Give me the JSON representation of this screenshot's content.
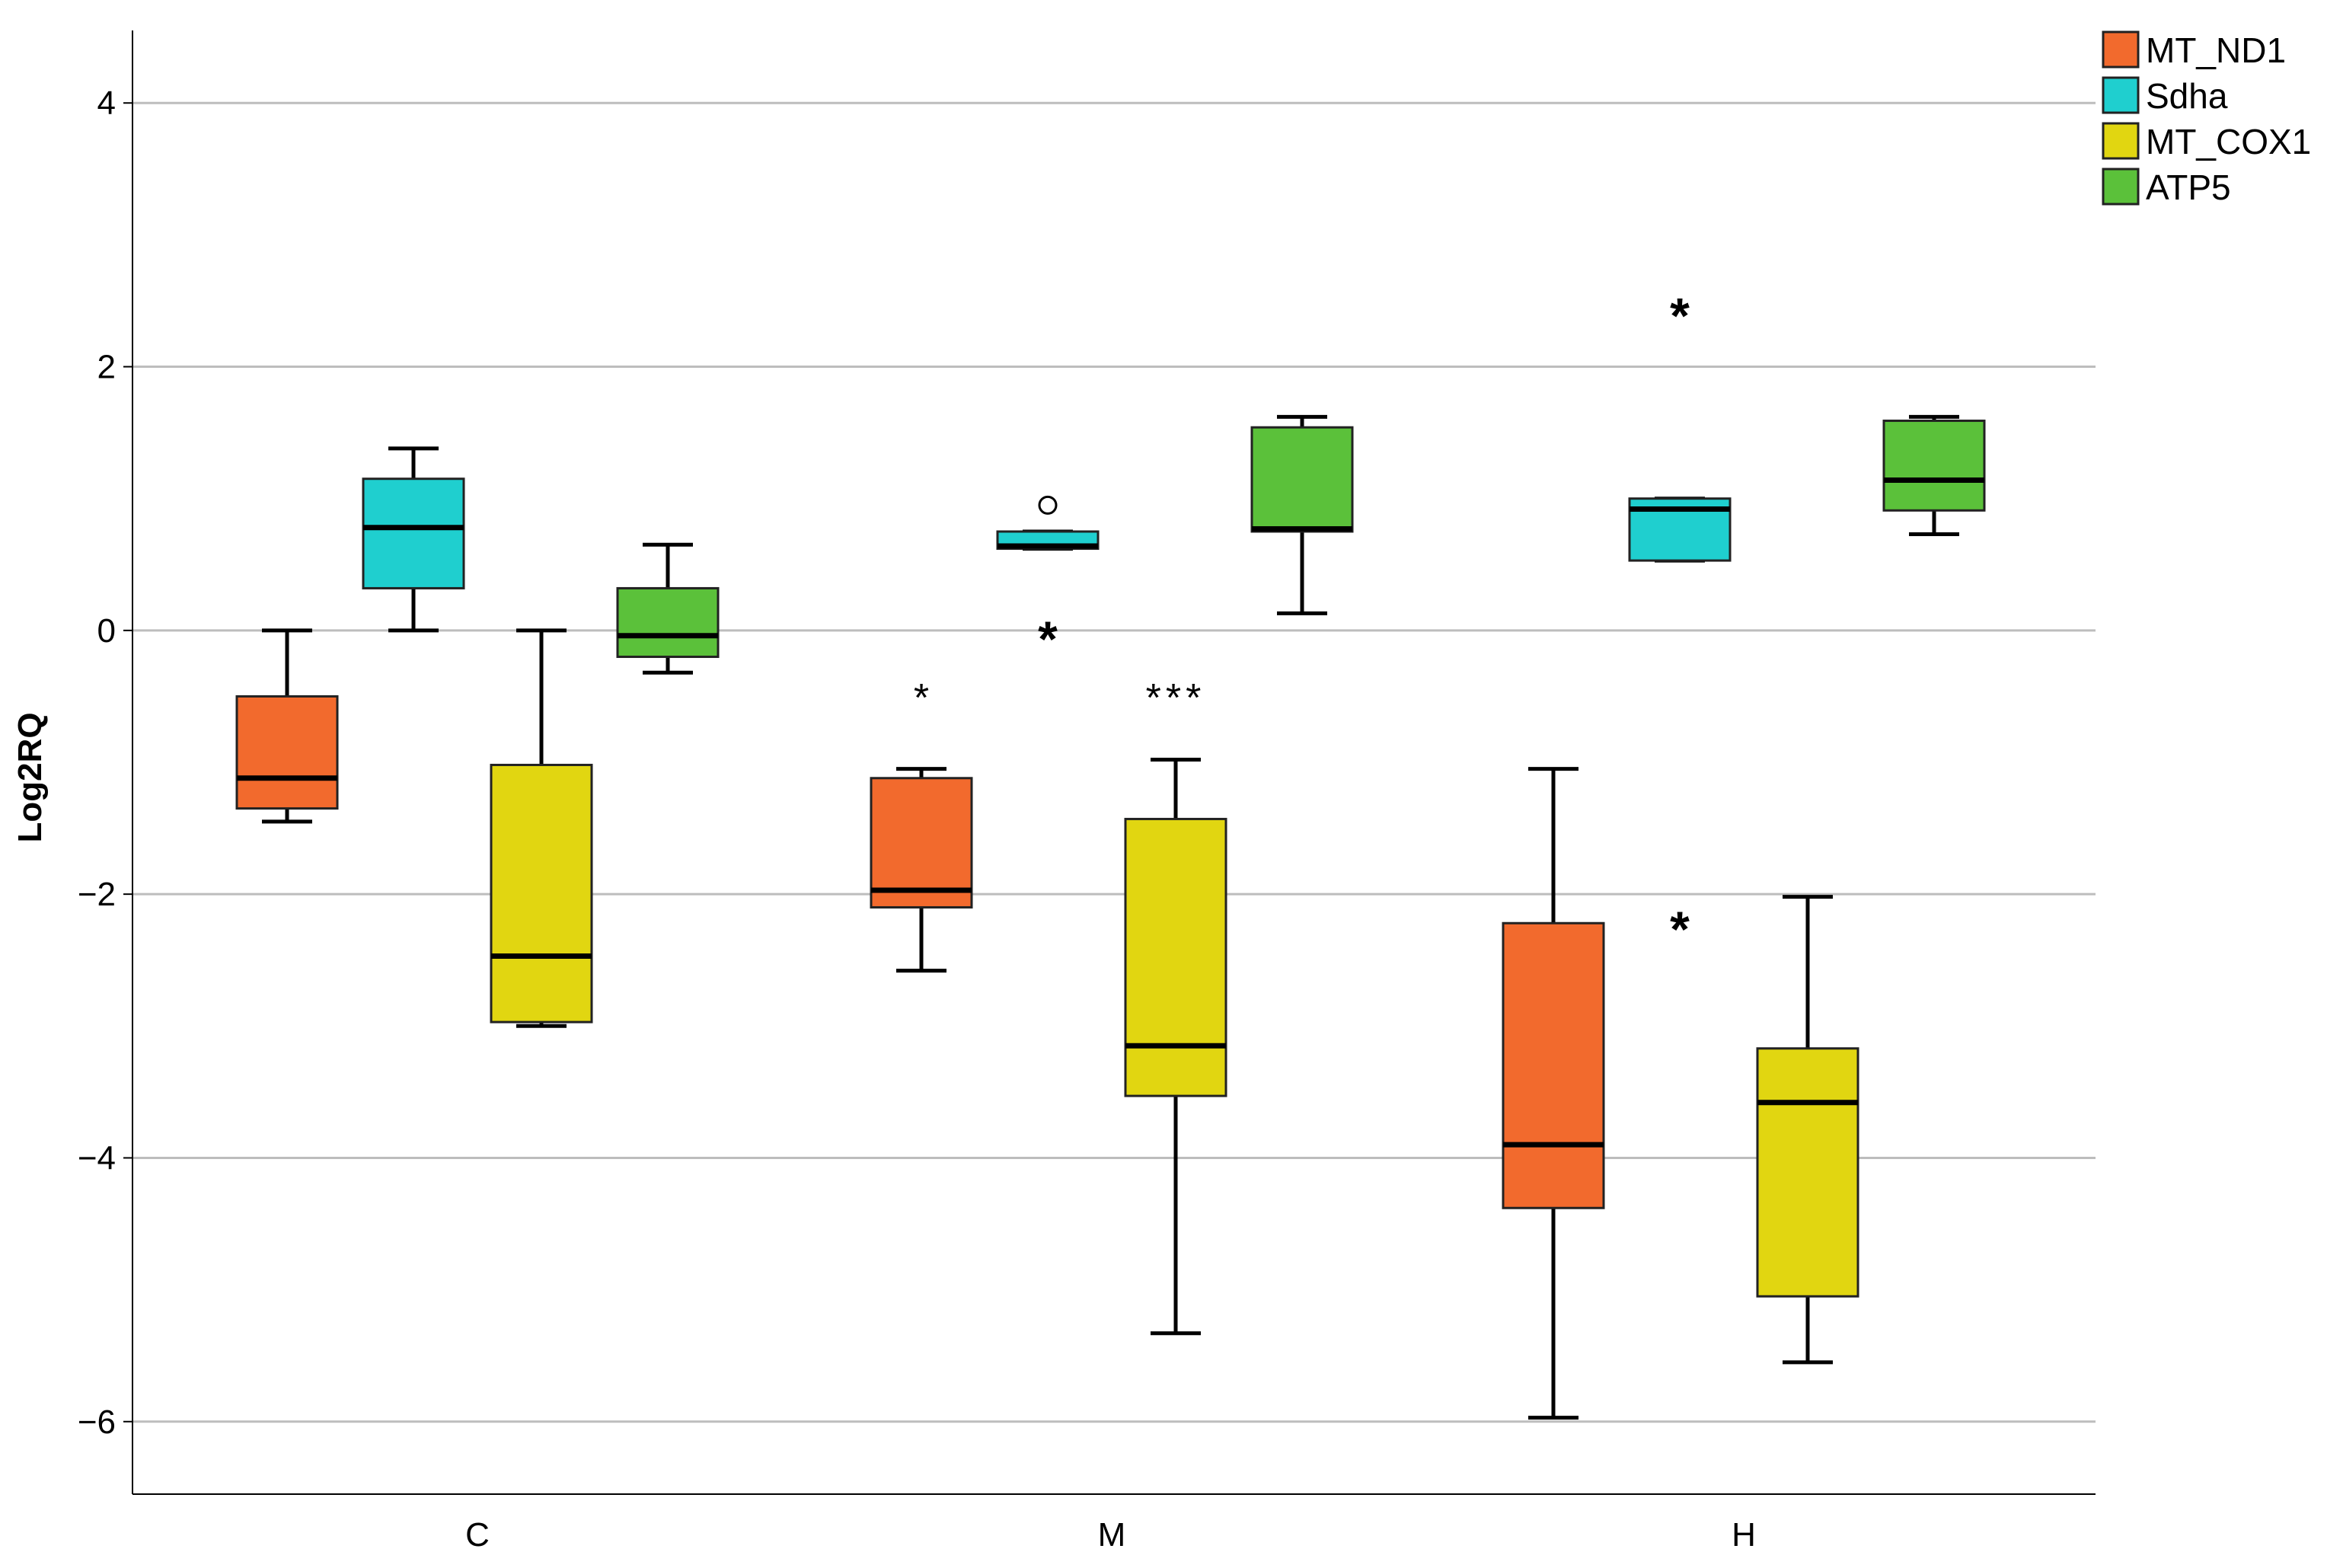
{
  "chart_data": {
    "type": "boxplot",
    "title": "",
    "xlabel": "",
    "ylabel": "Log2RQ",
    "ylim": [
      -6.55,
      4.55
    ],
    "yticks": [
      4,
      2,
      0,
      -2,
      -4,
      -6
    ],
    "grid": true,
    "legend_position": "top-right",
    "categories": [
      "C",
      "M",
      "H"
    ],
    "series": [
      {
        "name": "MT_ND1",
        "color": "#f26a2d",
        "boxes": [
          {
            "min": -1.45,
            "q1": -1.35,
            "median": -1.12,
            "q3": -0.5,
            "max": 0.0
          },
          {
            "min": -2.58,
            "q1": -2.1,
            "median": -1.97,
            "q3": -1.12,
            "max": -1.05
          },
          {
            "min": -5.97,
            "q1": -4.38,
            "median": -3.9,
            "q3": -2.22,
            "max": -1.05
          }
        ]
      },
      {
        "name": "Sdha",
        "color": "#1fcfcf",
        "boxes": [
          {
            "min": 0.0,
            "q1": 0.32,
            "median": 0.78,
            "q3": 1.15,
            "max": 1.38
          },
          {
            "min": 0.62,
            "q1": 0.62,
            "median": 0.64,
            "q3": 0.75,
            "max": 0.75,
            "outliers": [
              0.95
            ]
          },
          {
            "min": 0.53,
            "q1": 0.53,
            "median": 0.92,
            "q3": 1.0,
            "max": 1.0
          }
        ]
      },
      {
        "name": "MT_COX1",
        "color": "#e1d611",
        "boxes": [
          {
            "min": -3.0,
            "q1": -2.97,
            "median": -2.47,
            "q3": -1.02,
            "max": 0.0
          },
          {
            "min": -5.33,
            "q1": -3.53,
            "median": -3.15,
            "q3": -1.43,
            "max": -0.98
          },
          {
            "min": -5.55,
            "q1": -5.05,
            "median": -3.58,
            "q3": -3.17,
            "max": -2.02
          }
        ]
      },
      {
        "name": "ATP5",
        "color": "#5bc13a",
        "boxes": [
          {
            "min": -0.32,
            "q1": -0.2,
            "median": -0.04,
            "q3": 0.32,
            "max": 0.65
          },
          {
            "min": 0.13,
            "q1": 0.75,
            "median": 0.77,
            "q3": 1.54,
            "max": 1.62
          },
          {
            "min": 0.73,
            "q1": 0.91,
            "median": 1.14,
            "q3": 1.59,
            "max": 1.62
          }
        ]
      }
    ],
    "annotations": [
      {
        "text": "*",
        "category": "M",
        "series": "MT_ND1",
        "y": -0.45,
        "bold": false
      },
      {
        "text": "*",
        "category": "M",
        "series": "Sdha",
        "y": 0.0,
        "bold": true
      },
      {
        "text": "***",
        "category": "M",
        "series": "MT_COX1",
        "y": -0.45,
        "bold": false
      },
      {
        "text": "*",
        "category": "H",
        "series": "Sdha",
        "y": 2.45,
        "bold": true
      },
      {
        "text": "*",
        "category": "H",
        "series": "Sdha",
        "y": -2.2,
        "bold": true
      }
    ]
  }
}
